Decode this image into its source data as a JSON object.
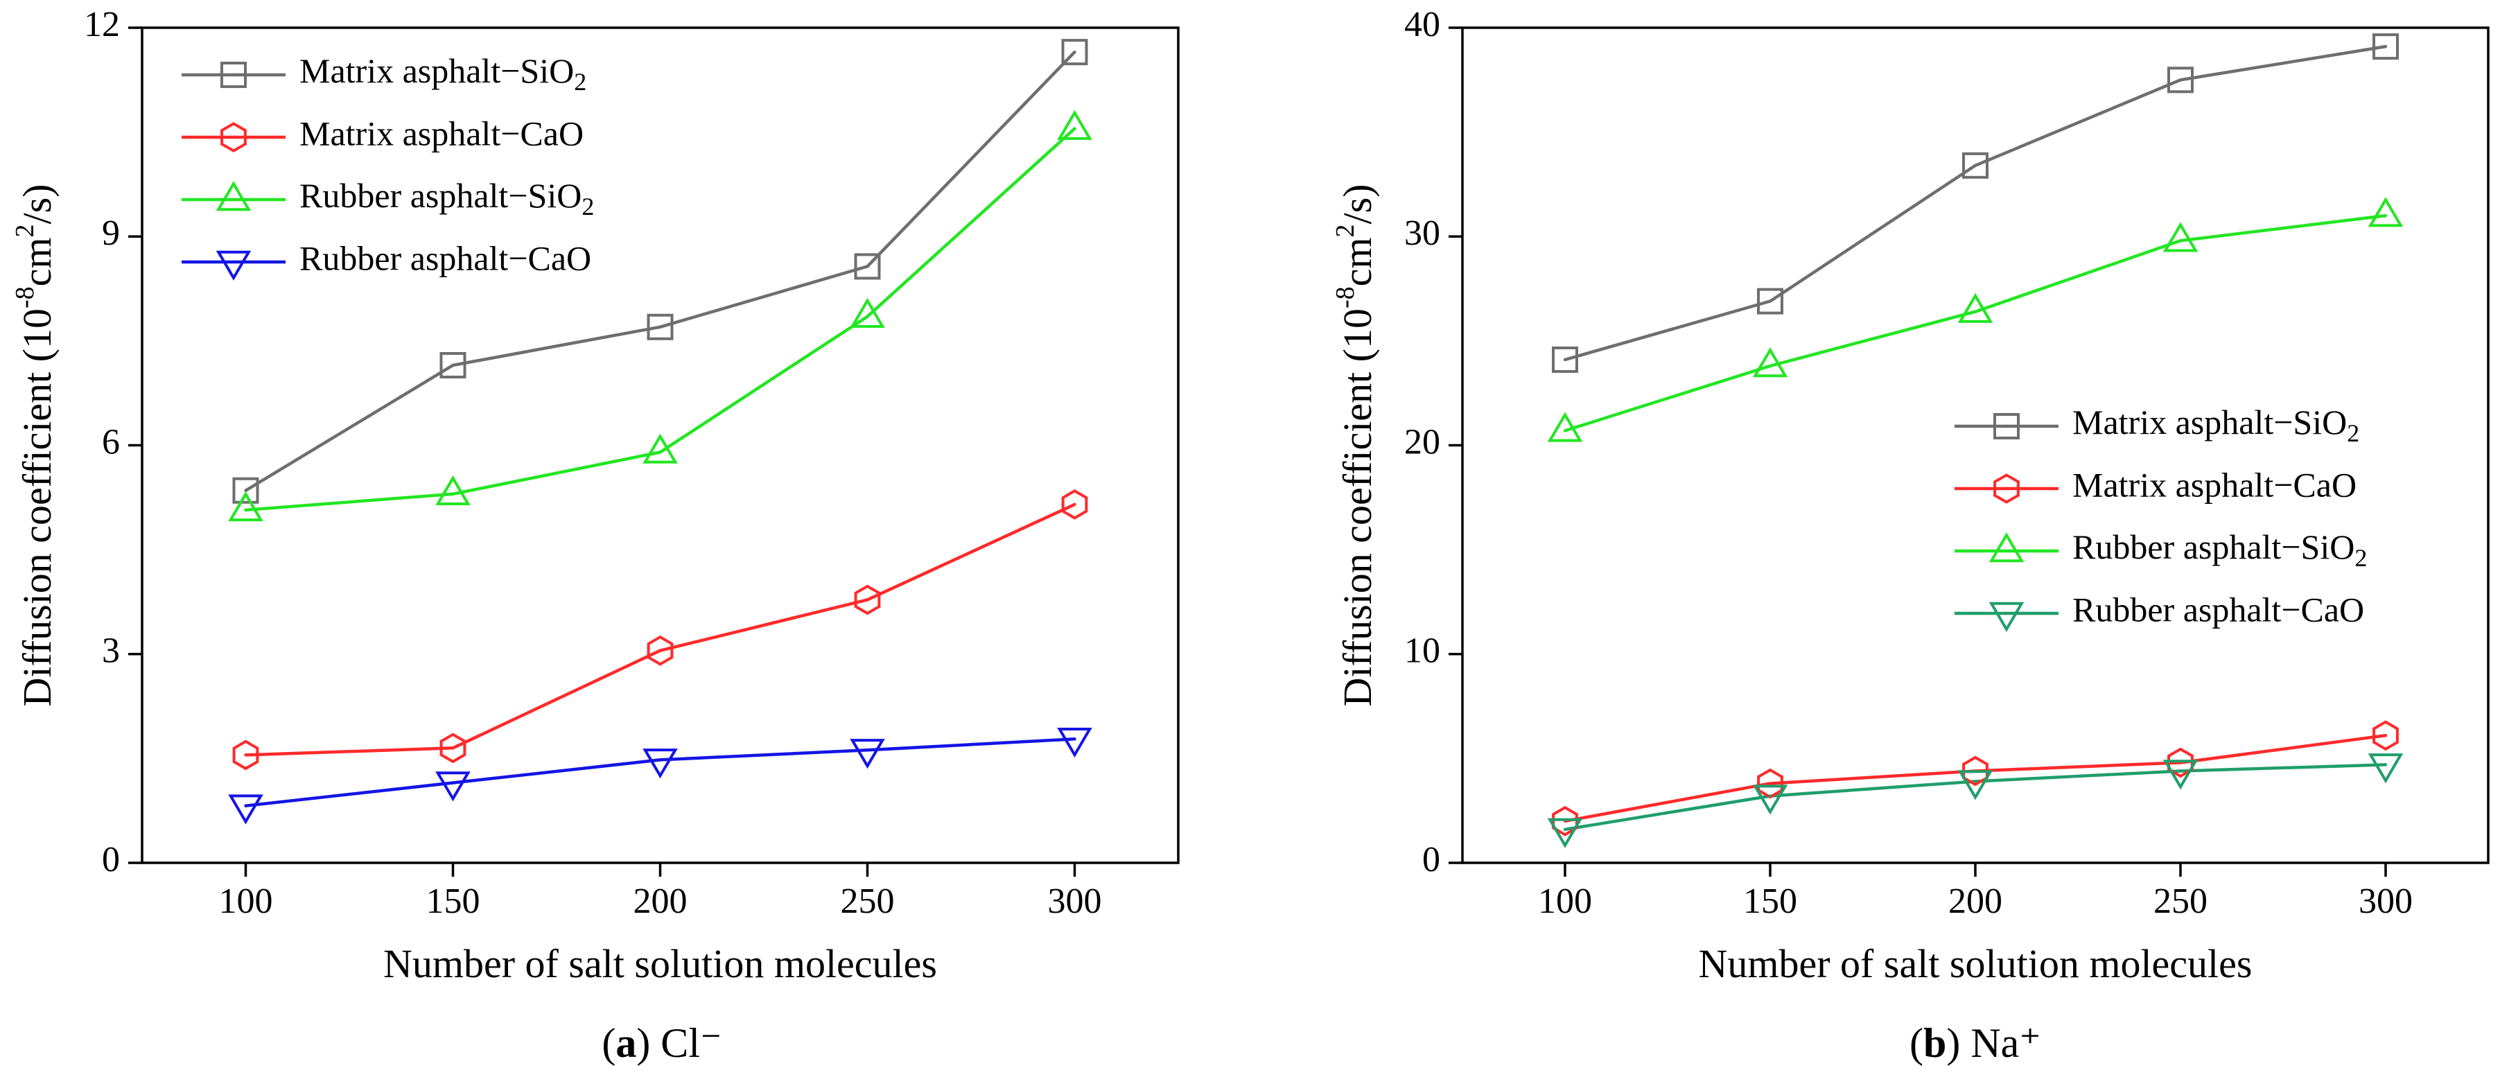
{
  "chart_data": [
    {
      "type": "line",
      "panel": "a",
      "caption_label": "a",
      "caption_text": " Cl⁻",
      "xlabel": "Number of salt solution molecules",
      "ylabel": "Diffusion coefficient (10⁻⁸cm²/s)",
      "x": [
        100,
        150,
        200,
        250,
        300
      ],
      "xlim": [
        75,
        325
      ],
      "ylim": [
        0,
        12
      ],
      "xticks": [
        100,
        150,
        200,
        250,
        300
      ],
      "yticks": [
        0,
        3,
        6,
        9,
        12
      ],
      "legend_position": "top-left",
      "series": [
        {
          "name": "Matrix asphalt−SiO₂",
          "color": "#6e6e6e",
          "marker": "square",
          "values": [
            5.35,
            7.15,
            7.7,
            8.57,
            11.65
          ]
        },
        {
          "name": "Matrix asphalt−CaO",
          "color": "#ff2a2a",
          "marker": "hexagon",
          "values": [
            1.55,
            1.65,
            3.05,
            3.78,
            5.15
          ]
        },
        {
          "name": "Rubber asphalt−SiO₂",
          "color": "#22e622",
          "marker": "triangle-up",
          "values": [
            5.07,
            5.3,
            5.9,
            7.85,
            10.55
          ]
        },
        {
          "name": "Rubber asphalt−CaO",
          "color": "#1414e6",
          "marker": "triangle-down",
          "values": [
            0.82,
            1.15,
            1.48,
            1.62,
            1.78
          ]
        }
      ]
    },
    {
      "type": "line",
      "panel": "b",
      "caption_label": "b",
      "caption_text": " Na⁺",
      "xlabel": "Number of salt solution molecules",
      "ylabel": "Diffusion coefficient (10⁻⁸cm²/s)",
      "x": [
        100,
        150,
        200,
        250,
        300
      ],
      "xlim": [
        75,
        325
      ],
      "ylim": [
        0,
        40
      ],
      "xticks": [
        100,
        150,
        200,
        250,
        300
      ],
      "yticks": [
        0,
        10,
        20,
        30,
        40
      ],
      "legend_position": "middle-right",
      "series": [
        {
          "name": "Matrix asphalt−SiO₂",
          "color": "#6e6e6e",
          "marker": "square",
          "values": [
            24.1,
            26.9,
            33.4,
            37.5,
            39.1
          ]
        },
        {
          "name": "Matrix asphalt−CaO",
          "color": "#ff2a2a",
          "marker": "hexagon",
          "values": [
            2.0,
            3.8,
            4.4,
            4.8,
            6.1
          ]
        },
        {
          "name": "Rubber asphalt−SiO₂",
          "color": "#22e622",
          "marker": "triangle-up",
          "values": [
            20.7,
            23.8,
            26.4,
            29.8,
            31.0
          ]
        },
        {
          "name": "Rubber asphalt−CaO",
          "color": "#1f9e6b",
          "marker": "triangle-down",
          "values": [
            1.6,
            3.2,
            3.9,
            4.4,
            4.7
          ]
        }
      ]
    }
  ]
}
